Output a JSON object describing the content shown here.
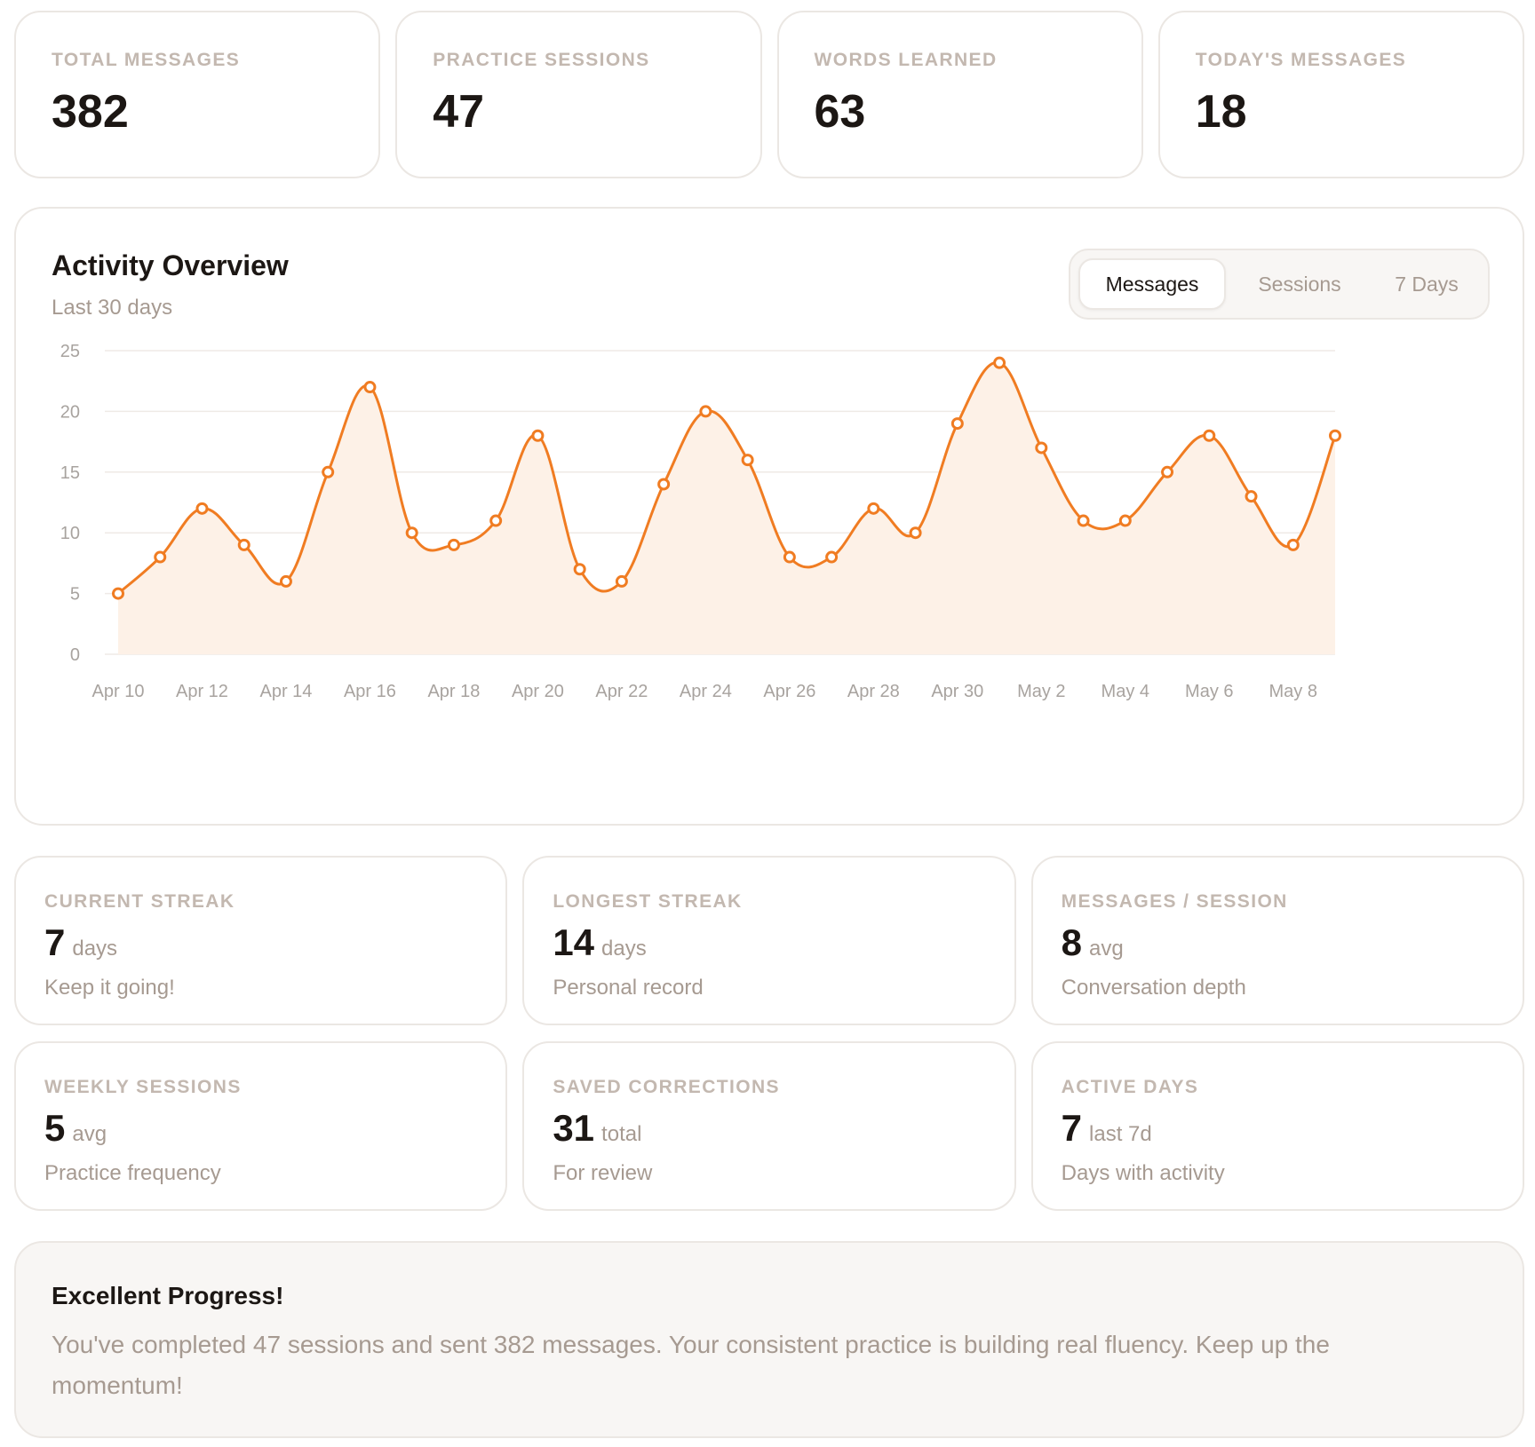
{
  "kpis": [
    {
      "label": "TOTAL MESSAGES",
      "value": "382"
    },
    {
      "label": "PRACTICE SESSIONS",
      "value": "47"
    },
    {
      "label": "WORDS LEARNED",
      "value": "63"
    },
    {
      "label": "TODAY'S MESSAGES",
      "value": "18"
    }
  ],
  "activity": {
    "title": "Activity Overview",
    "subtitle": "Last 30 days",
    "tabs": [
      {
        "label": "Messages",
        "active": true
      },
      {
        "label": "Sessions",
        "active": false
      },
      {
        "label": "7 Days",
        "active": false
      }
    ]
  },
  "chart_data": {
    "type": "area",
    "x": [
      "Apr 10",
      "Apr 11",
      "Apr 12",
      "Apr 13",
      "Apr 14",
      "Apr 15",
      "Apr 16",
      "Apr 17",
      "Apr 18",
      "Apr 19",
      "Apr 20",
      "Apr 21",
      "Apr 22",
      "Apr 23",
      "Apr 24",
      "Apr 25",
      "Apr 26",
      "Apr 27",
      "Apr 28",
      "Apr 29",
      "Apr 30",
      "May 1",
      "May 2",
      "May 3",
      "May 4",
      "May 5",
      "May 6",
      "May 7",
      "May 8",
      "May 9"
    ],
    "values": [
      5,
      8,
      12,
      9,
      6,
      15,
      22,
      10,
      9,
      11,
      18,
      7,
      6,
      14,
      20,
      16,
      8,
      8,
      12,
      10,
      19,
      24,
      17,
      11,
      11,
      15,
      18,
      13,
      9,
      18
    ],
    "xticks": [
      "Apr 10",
      "Apr 12",
      "Apr 14",
      "Apr 16",
      "Apr 18",
      "Apr 20",
      "Apr 22",
      "Apr 24",
      "Apr 26",
      "Apr 28",
      "Apr 30",
      "May 2",
      "May 4",
      "May 6",
      "May 8"
    ],
    "yticks": [
      0,
      5,
      10,
      15,
      20,
      25
    ],
    "ylim": [
      0,
      25
    ],
    "grid": true,
    "line_color": "#f07c22",
    "fill_color": "#fdf1e7"
  },
  "stats": [
    {
      "label": "CURRENT STREAK",
      "value": "7",
      "unit": "days",
      "caption": "Keep it going!"
    },
    {
      "label": "LONGEST STREAK",
      "value": "14",
      "unit": "days",
      "caption": "Personal record"
    },
    {
      "label": "MESSAGES / SESSION",
      "value": "8",
      "unit": "avg",
      "caption": "Conversation depth"
    },
    {
      "label": "WEEKLY SESSIONS",
      "value": "5",
      "unit": "avg",
      "caption": "Practice frequency"
    },
    {
      "label": "SAVED CORRECTIONS",
      "value": "31",
      "unit": "total",
      "caption": "For review"
    },
    {
      "label": "ACTIVE DAYS",
      "value": "7",
      "unit": "last 7d",
      "caption": "Days with activity"
    }
  ],
  "banner": {
    "title": "Excellent Progress!",
    "text": "You've completed 47 sessions and sent 382 messages. Your consistent practice is building real fluency. Keep up the momentum!"
  }
}
